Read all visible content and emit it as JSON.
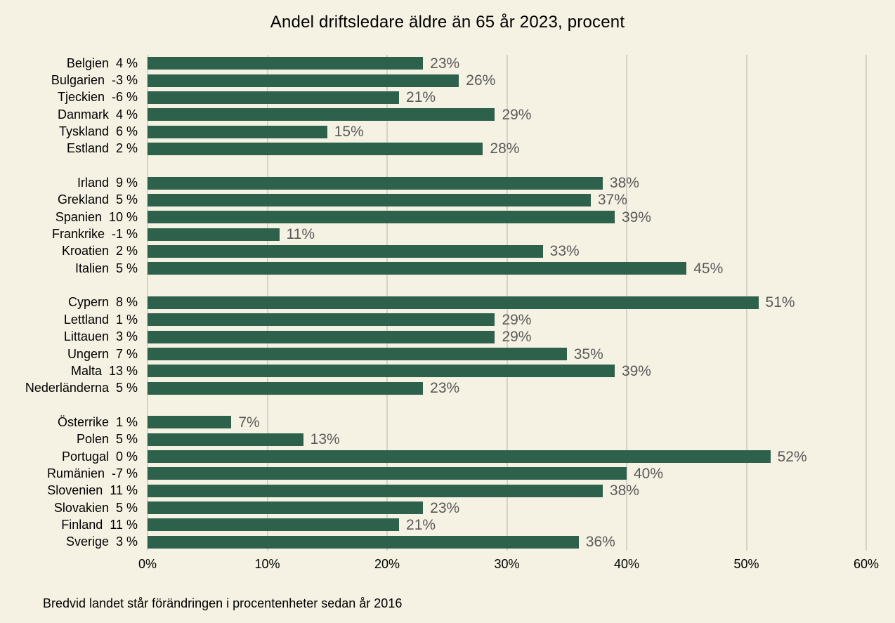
{
  "title": "Andel driftsledare äldre än 65 år 2023, procent",
  "footnote": "Bredvid landet står förändringen i procentenheter sedan år 2016",
  "colors": {
    "background": "#f5f2e3",
    "bar": "#2d614c",
    "gridline": "#d5d3c8",
    "value_label": "#595959",
    "text": "#000000"
  },
  "chart_data": {
    "type": "bar",
    "orientation": "horizontal",
    "title": "Andel driftsledare äldre än 65 år 2023, procent",
    "xlabel": "",
    "ylabel": "",
    "xlim": [
      0,
      60
    ],
    "x_ticks": [
      "0%",
      "10%",
      "20%",
      "30%",
      "40%",
      "50%",
      "60%"
    ],
    "x_tick_values": [
      0,
      10,
      20,
      30,
      40,
      50,
      60
    ],
    "grid": true,
    "legend": "none",
    "value_suffix": "%",
    "label_separator": "  ",
    "annotation": "Bredvid landet står förändringen i procentenheter sedan år 2016",
    "groups": [
      [
        {
          "country": "Belgien",
          "change": "4 %",
          "value": 23
        },
        {
          "country": "Bulgarien",
          "change": "-3 %",
          "value": 26
        },
        {
          "country": "Tjeckien",
          "change": "-6 %",
          "value": 21
        },
        {
          "country": "Danmark",
          "change": "4 %",
          "value": 29
        },
        {
          "country": "Tyskland",
          "change": "6 %",
          "value": 15
        },
        {
          "country": "Estland",
          "change": "2 %",
          "value": 28
        }
      ],
      [
        {
          "country": "Irland",
          "change": "9 %",
          "value": 38
        },
        {
          "country": "Grekland",
          "change": "5 %",
          "value": 37
        },
        {
          "country": "Spanien",
          "change": "10 %",
          "value": 39
        },
        {
          "country": "Frankrike",
          "change": "-1 %",
          "value": 11
        },
        {
          "country": "Kroatien",
          "change": "2 %",
          "value": 33
        },
        {
          "country": "Italien",
          "change": "5 %",
          "value": 45
        }
      ],
      [
        {
          "country": "Cypern",
          "change": "8 %",
          "value": 51
        },
        {
          "country": "Lettland",
          "change": "1 %",
          "value": 29
        },
        {
          "country": "Littauen",
          "change": "3 %",
          "value": 29
        },
        {
          "country": "Ungern",
          "change": "7 %",
          "value": 35
        },
        {
          "country": "Malta",
          "change": "13 %",
          "value": 39
        },
        {
          "country": "Nederländerna",
          "change": "5 %",
          "value": 23
        }
      ],
      [
        {
          "country": "Österrike",
          "change": "1 %",
          "value": 7
        },
        {
          "country": "Polen",
          "change": "5 %",
          "value": 13
        },
        {
          "country": "Portugal",
          "change": "0 %",
          "value": 52
        },
        {
          "country": "Rumänien",
          "change": "-7 %",
          "value": 40
        },
        {
          "country": "Slovenien",
          "change": "11 %",
          "value": 38
        },
        {
          "country": "Slovakien",
          "change": "5 %",
          "value": 23
        },
        {
          "country": "Finland",
          "change": "11 %",
          "value": 21
        },
        {
          "country": "Sverige",
          "change": "3 %",
          "value": 36
        }
      ]
    ]
  }
}
